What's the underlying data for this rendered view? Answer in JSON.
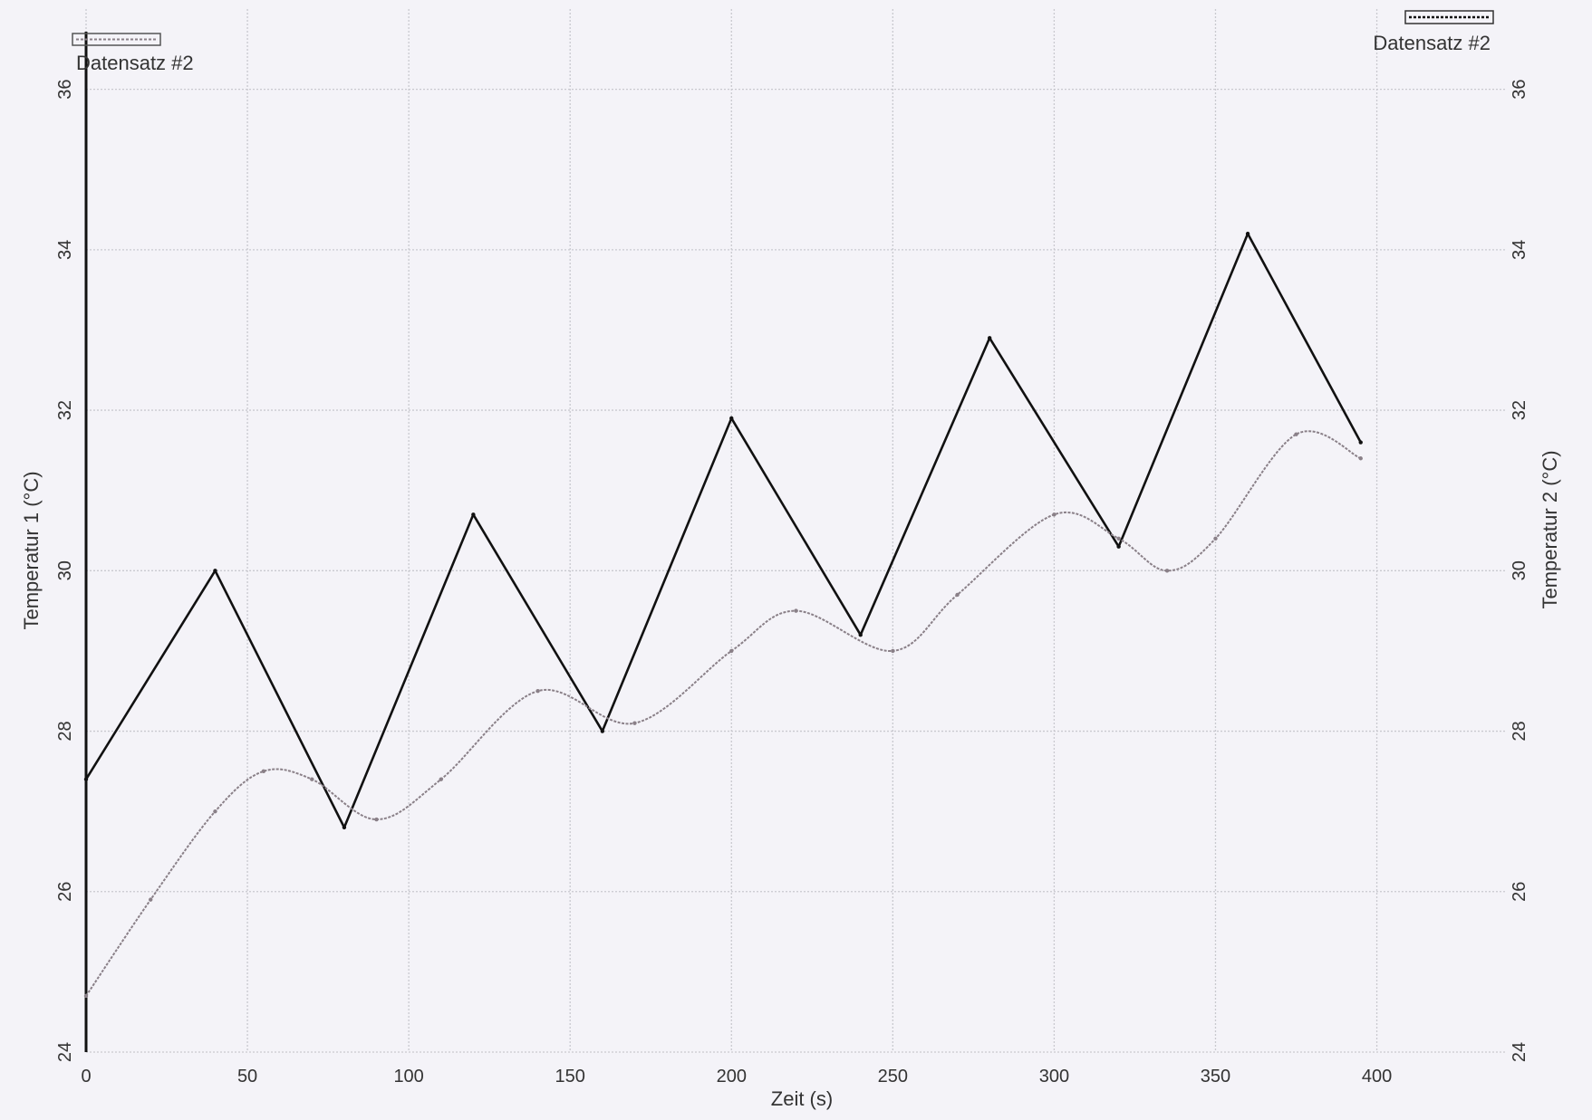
{
  "chart_data": {
    "type": "line",
    "xlabel": "Zeit (s)",
    "xlim": [
      0,
      440
    ],
    "x_ticks": [
      0,
      50,
      100,
      150,
      200,
      250,
      300,
      350,
      400
    ],
    "grid": true,
    "y_left": {
      "label": "Temperatur 1 (°C)",
      "lim": [
        24,
        37
      ],
      "ticks": [
        24,
        26,
        28,
        30,
        32,
        34,
        36
      ]
    },
    "y_right": {
      "label": "Temperatur 2 (°C)",
      "lim": [
        24,
        37
      ],
      "ticks": [
        24,
        26,
        28,
        30,
        32,
        34,
        36
      ]
    },
    "legend": [
      {
        "label": "Datensatz #2",
        "position": "top-left",
        "color": "#8a8088"
      },
      {
        "label": "Datensatz #2",
        "position": "top-right",
        "color": "#111111"
      }
    ],
    "series": [
      {
        "axis": "left",
        "color": "#111111",
        "x": [
          0,
          40,
          80,
          120,
          160,
          200,
          240,
          280,
          320,
          360,
          395
        ],
        "y": [
          27.4,
          30.0,
          26.8,
          30.7,
          28.0,
          31.9,
          29.2,
          32.9,
          30.3,
          34.2,
          31.6
        ]
      },
      {
        "axis": "right",
        "color": "#8a8088",
        "x": [
          0,
          20,
          40,
          55,
          70,
          90,
          110,
          140,
          170,
          200,
          220,
          250,
          270,
          300,
          320,
          335,
          350,
          375,
          395
        ],
        "y": [
          24.7,
          25.9,
          27.0,
          27.5,
          27.4,
          26.9,
          27.4,
          28.5,
          28.1,
          29.0,
          29.5,
          29.0,
          29.7,
          30.7,
          30.4,
          30.0,
          30.4,
          31.7,
          31.4
        ]
      }
    ]
  }
}
